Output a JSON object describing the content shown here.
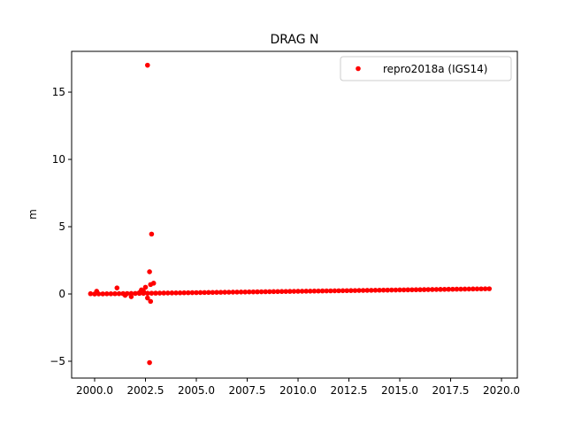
{
  "chart_data": {
    "type": "scatter",
    "title": "DRAG N",
    "ylabel": "m",
    "xlim": [
      1998.87,
      2020.78
    ],
    "ylim": [
      -6.25,
      18.03
    ],
    "xticks": [
      {
        "value": 2000,
        "label": "2000.0"
      },
      {
        "value": 2002.5,
        "label": "2002.5"
      },
      {
        "value": 2005,
        "label": "2005.0"
      },
      {
        "value": 2007.5,
        "label": "2007.5"
      },
      {
        "value": 2010,
        "label": "2010.0"
      },
      {
        "value": 2012.5,
        "label": "2012.5"
      },
      {
        "value": 2015,
        "label": "2015.0"
      },
      {
        "value": 2017.5,
        "label": "2017.5"
      },
      {
        "value": 2020,
        "label": "2020.0"
      }
    ],
    "yticks": [
      {
        "value": -5,
        "label": "−5"
      },
      0,
      5,
      10,
      15
    ],
    "legend": "upper right",
    "series": [
      {
        "name": "repro2018a (IGS14)",
        "color": "#ff0000",
        "x": [
          2000,
          2000.2,
          2000.4,
          2000.6,
          2000.8,
          2001,
          2001.2,
          2001.4,
          2001.6,
          2001.8,
          2002,
          2002.2,
          2002.4,
          2002.6,
          2002.8,
          2003,
          2003.2,
          2003.4,
          2003.6,
          2003.8,
          2004,
          2004.2,
          2004.4,
          2004.6,
          2004.8,
          2005,
          2005.2,
          2005.4,
          2005.6,
          2005.8,
          2006,
          2006.2,
          2006.4,
          2006.6,
          2006.8,
          2007,
          2007.2,
          2007.4,
          2007.6,
          2007.8,
          2008,
          2008.2,
          2008.4,
          2008.6,
          2008.8,
          2009,
          2009.2,
          2009.4,
          2009.6,
          2009.8,
          2010,
          2010.2,
          2010.4,
          2010.6,
          2010.8,
          2011,
          2011.2,
          2011.4,
          2011.6,
          2011.8,
          2012,
          2012.2,
          2012.4,
          2012.6,
          2012.8,
          2013,
          2013.2,
          2013.4,
          2013.6,
          2013.8,
          2014,
          2014.2,
          2014.4,
          2014.6,
          2014.8,
          2015,
          2015.2,
          2015.4,
          2015.6,
          2015.8,
          2016,
          2016.2,
          2016.4,
          2016.6,
          2016.8,
          2017,
          2017.2,
          2017.4,
          2017.6,
          2017.8,
          2018,
          2018.2,
          2018.4,
          2018.6,
          2018.8,
          2019,
          2019.2,
          2019.4,
          1999.8,
          2000.1,
          2001.1,
          2001.5,
          2001.8,
          2002.2,
          2002.3,
          2002.4,
          2002.5,
          2002.6,
          2002.6,
          2002.7,
          2002.7,
          2002.75,
          2002.75,
          2002.8,
          2002.9
        ],
        "values": [
          0,
          0.004,
          0.008,
          0.012,
          0.016,
          0.02,
          0.024,
          0.028,
          0.032,
          0.036,
          0.04,
          0.044,
          0.048,
          0.052,
          0.056,
          0.06,
          0.064,
          0.068,
          0.072,
          0.076,
          0.08,
          0.084,
          0.088,
          0.092,
          0.096,
          0.1,
          0.104,
          0.108,
          0.112,
          0.116,
          0.12,
          0.124,
          0.128,
          0.132,
          0.136,
          0.14,
          0.144,
          0.148,
          0.152,
          0.156,
          0.16,
          0.164,
          0.168,
          0.172,
          0.176,
          0.18,
          0.184,
          0.188,
          0.192,
          0.196,
          0.2,
          0.204,
          0.208,
          0.212,
          0.216,
          0.22,
          0.224,
          0.228,
          0.232,
          0.236,
          0.24,
          0.244,
          0.248,
          0.252,
          0.256,
          0.26,
          0.264,
          0.268,
          0.272,
          0.276,
          0.28,
          0.284,
          0.288,
          0.292,
          0.296,
          0.3,
          0.304,
          0.308,
          0.312,
          0.316,
          0.32,
          0.324,
          0.328,
          0.332,
          0.336,
          0.34,
          0.344,
          0.348,
          0.352,
          0.356,
          0.36,
          0.364,
          0.368,
          0.372,
          0.376,
          0.38,
          0.384,
          0.388,
          0.02,
          0.2,
          0.45,
          -0.1,
          -0.2,
          0.1,
          0.3,
          0.2,
          0.5,
          -0.3,
          17.0,
          1.65,
          -5.1,
          0.7,
          -0.55,
          4.45,
          0.8
        ]
      }
    ]
  }
}
